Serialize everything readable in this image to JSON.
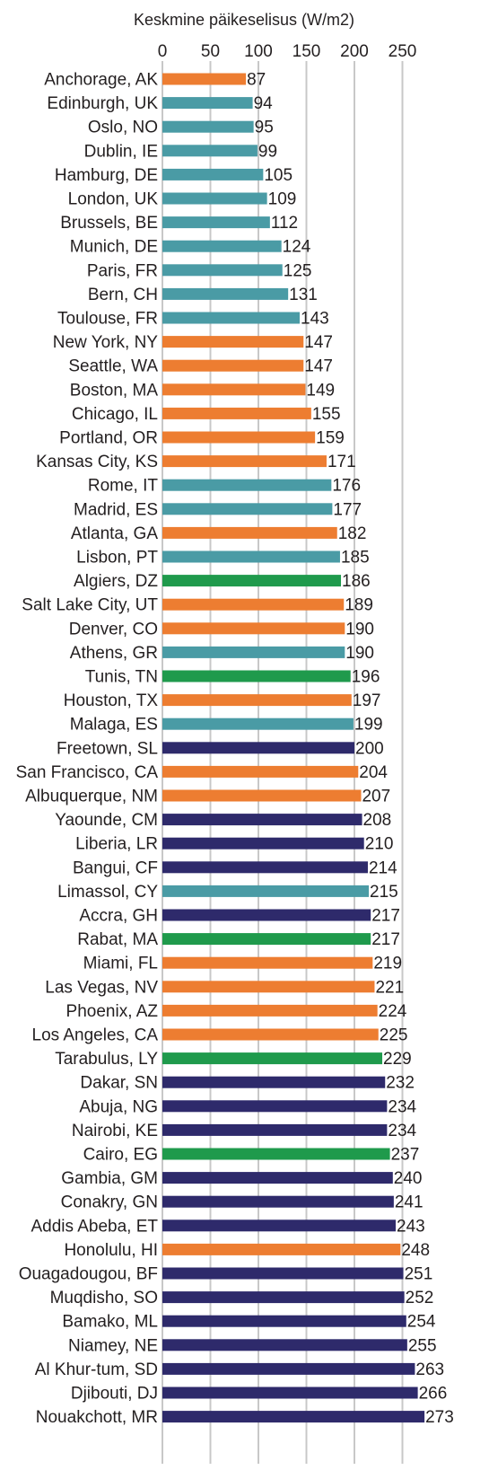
{
  "chart_data": {
    "type": "bar",
    "orientation": "horizontal",
    "title": "Keskmine päikeselisus (W/m2)",
    "xlim": [
      0,
      275
    ],
    "ticks": [
      0,
      50,
      100,
      150,
      200,
      250
    ],
    "grid": true,
    "colors": {
      "orange": "#ed7d31",
      "teal": "#4a9ba5",
      "green": "#1f9a4c",
      "navy": "#2e2a6b"
    },
    "categories": [
      "Anchorage, AK",
      "Edinburgh, UK",
      "Oslo, NO",
      "Dublin, IE",
      "Hamburg, DE",
      "London, UK",
      "Brussels, BE",
      "Munich, DE",
      "Paris, FR",
      "Bern, CH",
      "Toulouse, FR",
      "New York, NY",
      "Seattle, WA",
      "Boston, MA",
      "Chicago, IL",
      "Portland, OR",
      "Kansas City, KS",
      "Rome, IT",
      "Madrid, ES",
      "Atlanta, GA",
      "Lisbon, PT",
      "Algiers, DZ",
      "Salt Lake City, UT",
      "Denver, CO",
      "Athens, GR",
      "Tunis, TN",
      "Houston, TX",
      "Malaga, ES",
      "Freetown, SL",
      "San Francisco, CA",
      "Albuquerque, NM",
      "Yaounde, CM",
      "Liberia, LR",
      "Bangui, CF",
      "Limassol, CY",
      "Accra, GH",
      "Rabat, MA",
      "Miami, FL",
      "Las Vegas, NV",
      "Phoenix, AZ",
      "Los Angeles, CA",
      "Tarabulus, LY",
      "Dakar, SN",
      "Abuja, NG",
      "Nairobi, KE",
      "Cairo, EG",
      "Gambia, GM",
      "Conakry, GN",
      "Addis Abeba, ET",
      "Honolulu, HI",
      "Ouagadougou, BF",
      "Muqdisho, SO",
      "Bamako, ML",
      "Niamey, NE",
      "Al Khur-tum, SD",
      "Djibouti, DJ",
      "Nouakchott, MR"
    ],
    "values": [
      87,
      94,
      95,
      99,
      105,
      109,
      112,
      124,
      125,
      131,
      143,
      147,
      147,
      149,
      155,
      159,
      171,
      176,
      177,
      182,
      185,
      186,
      189,
      190,
      190,
      196,
      197,
      199,
      200,
      204,
      207,
      208,
      210,
      214,
      215,
      217,
      217,
      219,
      221,
      224,
      225,
      229,
      232,
      234,
      234,
      237,
      240,
      241,
      243,
      248,
      251,
      252,
      254,
      255,
      263,
      266,
      273
    ],
    "groups": [
      "orange",
      "teal",
      "teal",
      "teal",
      "teal",
      "teal",
      "teal",
      "teal",
      "teal",
      "teal",
      "teal",
      "orange",
      "orange",
      "orange",
      "orange",
      "orange",
      "orange",
      "teal",
      "teal",
      "orange",
      "teal",
      "green",
      "orange",
      "orange",
      "teal",
      "green",
      "orange",
      "teal",
      "navy",
      "orange",
      "orange",
      "navy",
      "navy",
      "navy",
      "teal",
      "navy",
      "green",
      "orange",
      "orange",
      "orange",
      "orange",
      "green",
      "navy",
      "navy",
      "navy",
      "green",
      "navy",
      "navy",
      "navy",
      "orange",
      "navy",
      "navy",
      "navy",
      "navy",
      "navy",
      "navy",
      "navy"
    ]
  }
}
